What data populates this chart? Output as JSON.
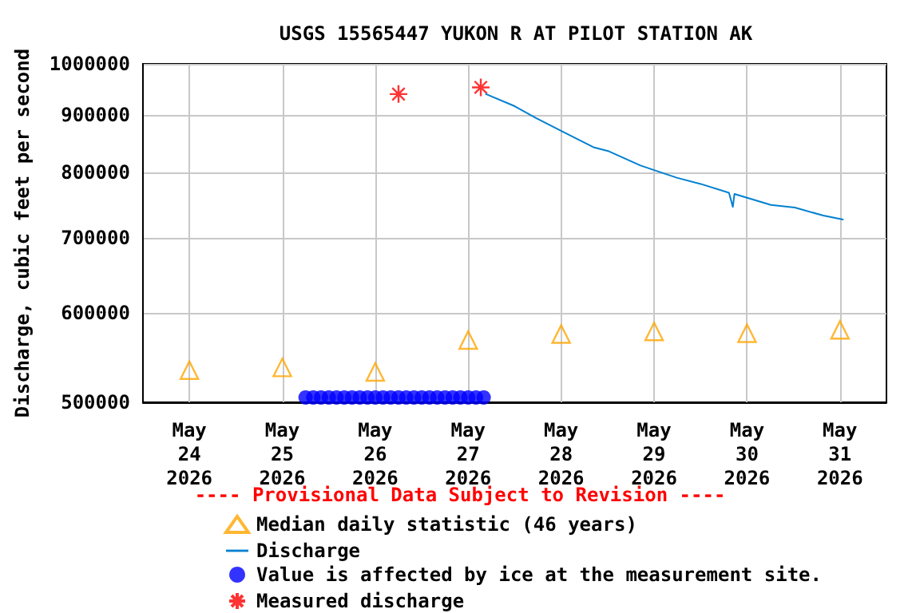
{
  "chart_data": {
    "type": "line",
    "title": "USGS 15565447 YUKON R AT PILOT STATION AK",
    "ylabel": "Discharge, cubic feet per second",
    "annotations": [
      "---- Provisional Data Subject to Revision ----"
    ],
    "log": "y",
    "grid": true,
    "legend": "bottom",
    "xlim": [
      "2026-05-23T12:00",
      "2026-05-31T12:00"
    ],
    "xticks": [
      {
        "value": "2026-05-24",
        "label": "May\n24\n2026"
      },
      {
        "value": "2026-05-25",
        "label": "May\n25\n2026"
      },
      {
        "value": "2026-05-26",
        "label": "May\n26\n2026"
      },
      {
        "value": "2026-05-27",
        "label": "May\n27\n2026"
      },
      {
        "value": "2026-05-28",
        "label": "May\n28\n2026"
      },
      {
        "value": "2026-05-29",
        "label": "May\n29\n2026"
      },
      {
        "value": "2026-05-30",
        "label": "May\n30\n2026"
      },
      {
        "value": "2026-05-31",
        "label": "May\n31\n2026"
      }
    ],
    "ylim": [
      500000,
      1000000
    ],
    "yticks": [
      500000,
      600000,
      700000,
      800000,
      900000,
      1000000
    ],
    "series": [
      {
        "name": "Median daily statistic (46 years)",
        "type": "scatter",
        "marker": "triangle",
        "color": "#ffa500",
        "x": [
          "2026-05-24",
          "2026-05-25",
          "2026-05-26",
          "2026-05-27",
          "2026-05-28",
          "2026-05-29",
          "2026-05-30",
          "2026-05-31"
        ],
        "values": [
          534000,
          537000,
          532000,
          568000,
          575000,
          578000,
          576000,
          580000
        ]
      },
      {
        "name": "Discharge",
        "marker": "none",
        "color": "#0080d0",
        "x": [
          "2026-05-27T04:36",
          "2026-05-27T12:00",
          "2026-05-27T17:30",
          "2026-05-28T00:10",
          "2026-05-28T08:20",
          "2026-05-28T12:20",
          "2026-05-28T20:30",
          "2026-05-29T05:50",
          "2026-05-29T12:00",
          "2026-05-29T19:20",
          "2026-05-29T20:20",
          "2026-05-29T20:45",
          "2026-05-30T06:10",
          "2026-05-30T12:20",
          "2026-05-30T19:40",
          "2026-05-31T00:45"
        ],
        "values": [
          940000,
          917000,
          895000,
          871000,
          843000,
          836000,
          812000,
          792000,
          782000,
          768000,
          746000,
          766000,
          749000,
          745000,
          733000,
          727000
        ]
      },
      {
        "name": "Value is affected by ice at the measurement site.",
        "type": "scatter",
        "marker": "circle",
        "color": "#0000ff",
        "x": [
          "2026-05-25T06:00",
          "2026-05-25T08:00",
          "2026-05-25T10:00",
          "2026-05-25T12:00",
          "2026-05-25T14:00",
          "2026-05-25T16:00",
          "2026-05-25T18:00",
          "2026-05-25T20:00",
          "2026-05-25T22:00",
          "2026-05-26T00:00",
          "2026-05-26T02:00",
          "2026-05-26T04:00",
          "2026-05-26T06:00",
          "2026-05-26T08:00",
          "2026-05-26T10:00",
          "2026-05-26T12:00",
          "2026-05-26T14:00",
          "2026-05-26T16:00",
          "2026-05-26T18:00",
          "2026-05-26T20:00",
          "2026-05-26T22:00",
          "2026-05-27T00:00",
          "2026-05-27T02:00",
          "2026-05-27T04:00"
        ],
        "values": [
          505000,
          505000,
          505000,
          505000,
          505000,
          505000,
          505000,
          505000,
          505000,
          505000,
          505000,
          505000,
          505000,
          505000,
          505000,
          505000,
          505000,
          505000,
          505000,
          505000,
          505000,
          505000,
          505000,
          505000
        ]
      },
      {
        "name": "Measured discharge",
        "type": "scatter",
        "marker": "cross",
        "color": "#ff0000",
        "x": [
          "2026-05-26T06:00",
          "2026-05-27T03:15"
        ],
        "values": [
          940000,
          953000
        ]
      }
    ]
  }
}
